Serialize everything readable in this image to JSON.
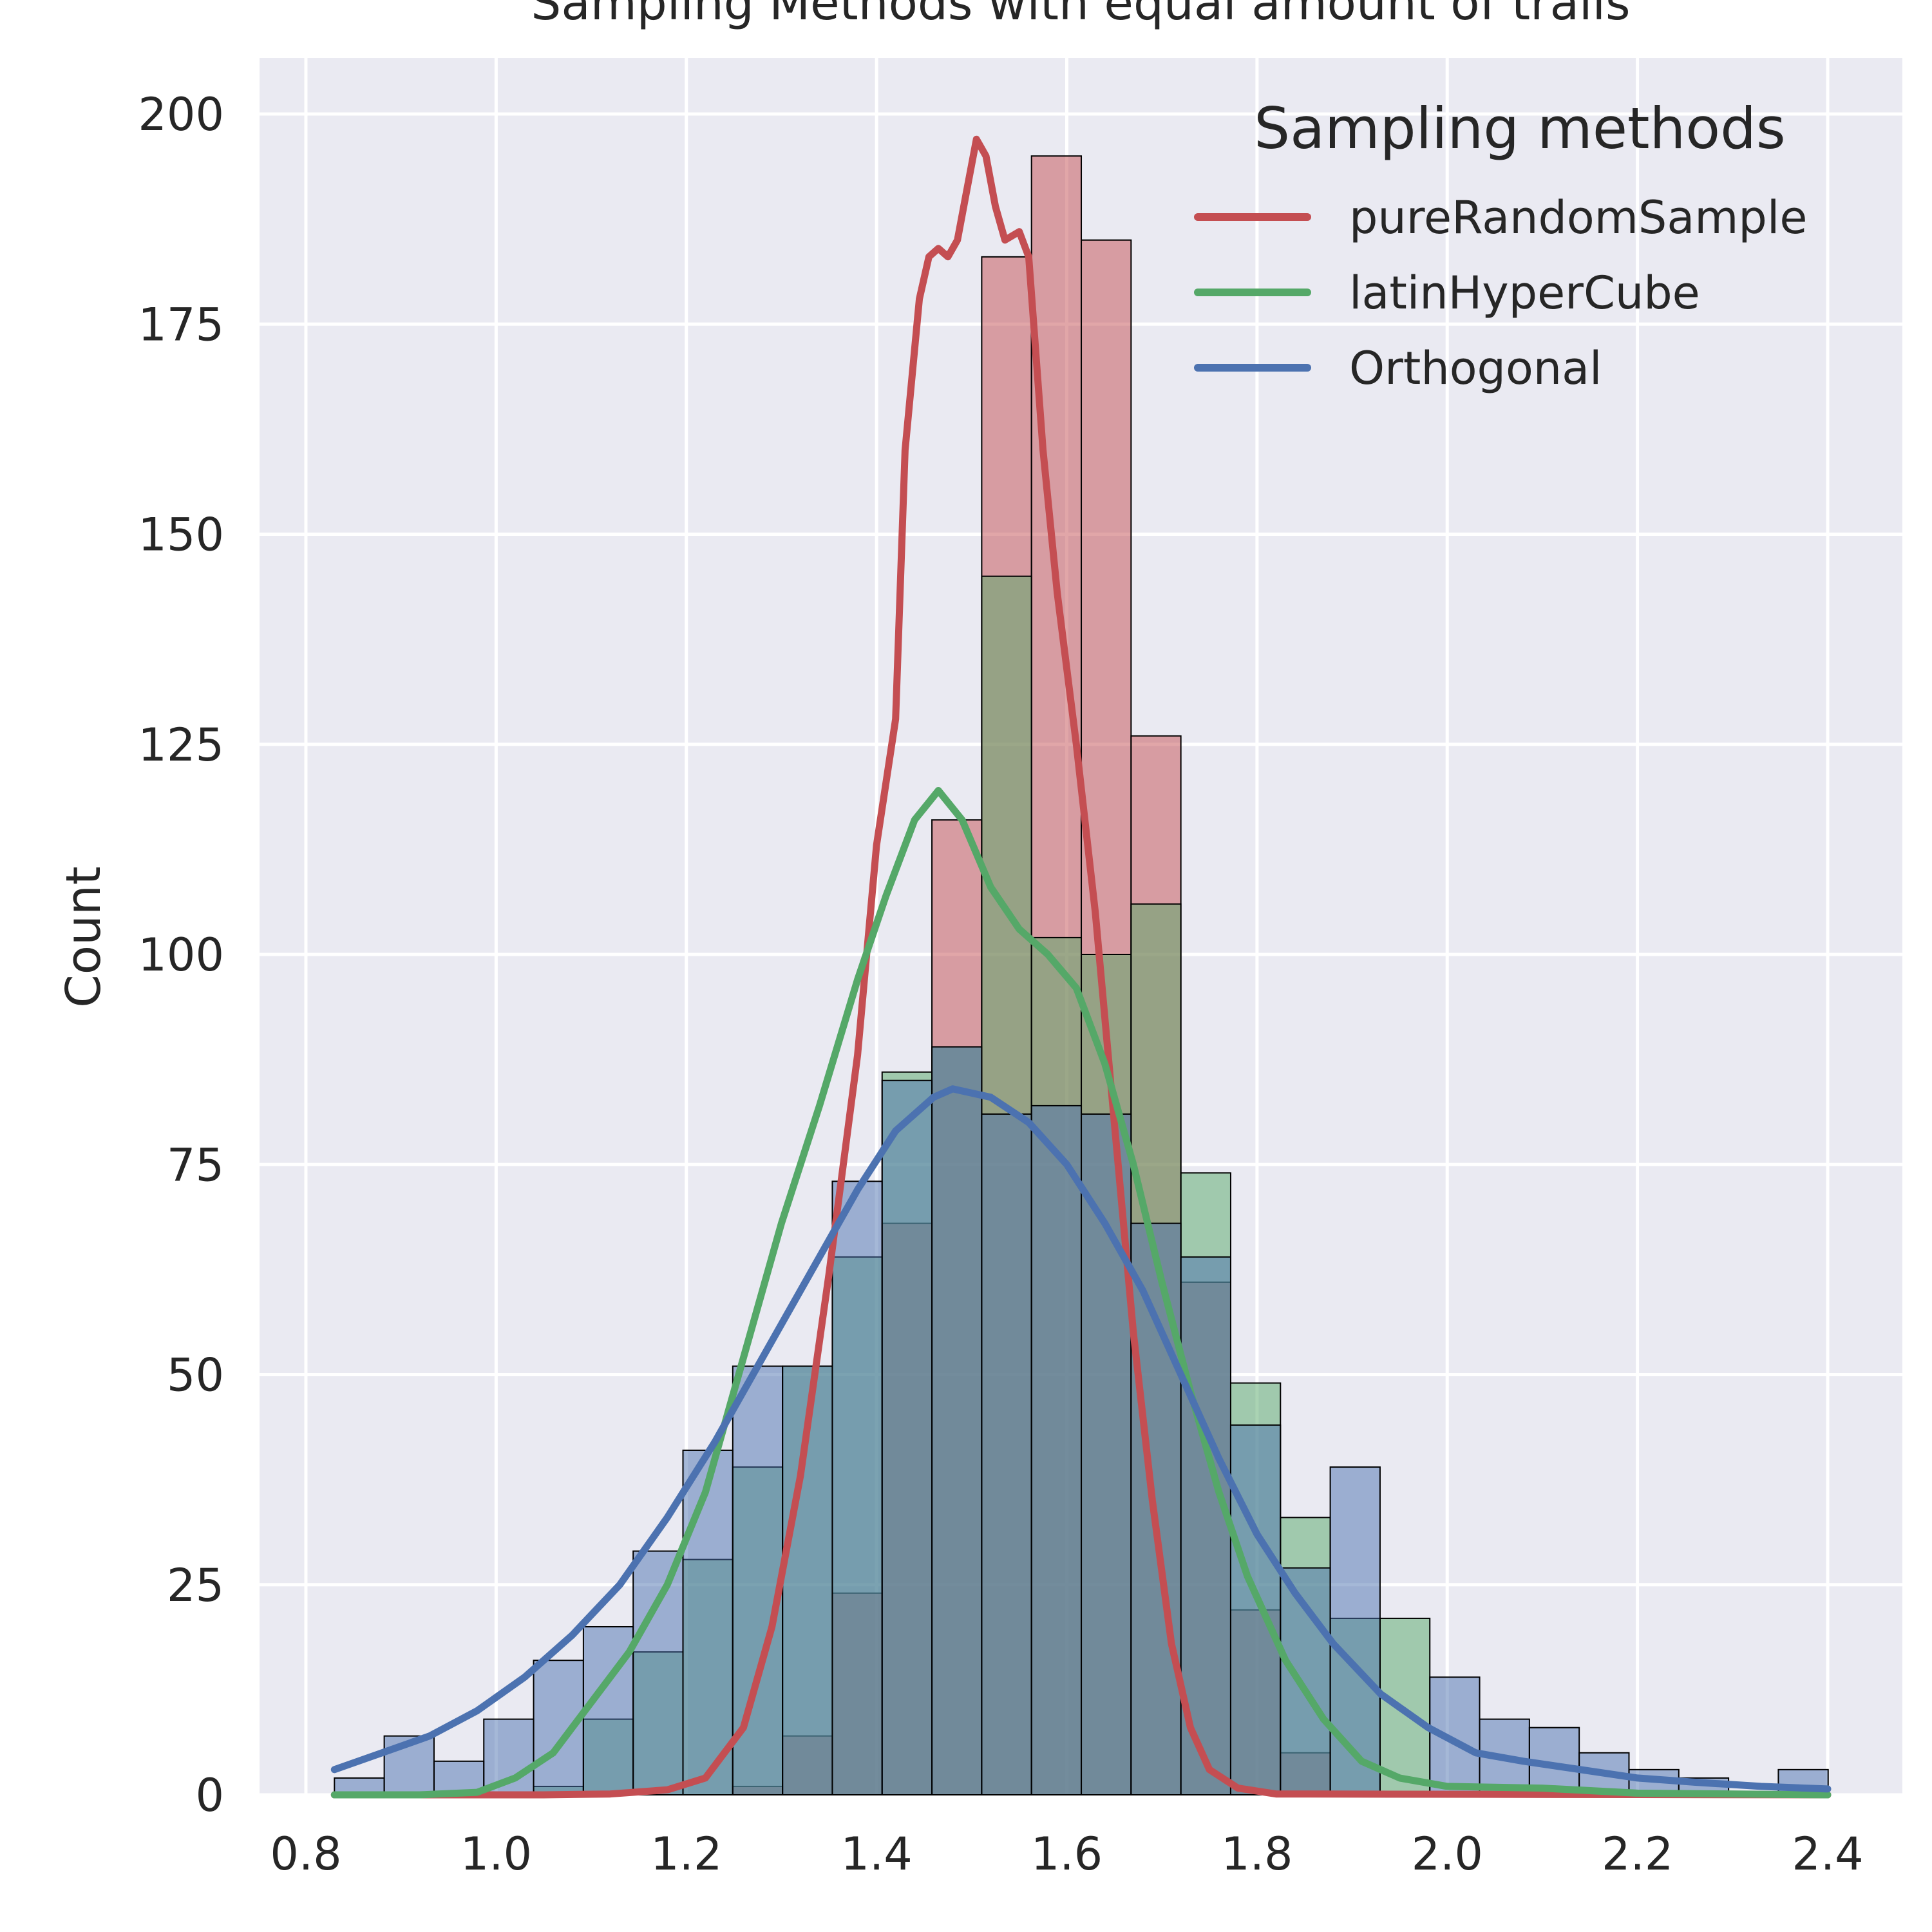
{
  "chart_data": {
    "type": "histogram",
    "title": "Sampling Methods with equal amount of trails",
    "xlabel": "",
    "ylabel": "Count",
    "xlim": [
      0.79,
      2.465
    ],
    "ylim": [
      0,
      207
    ],
    "xticks": [
      0.8,
      1.0,
      1.2,
      1.4,
      1.6,
      1.8,
      2.0,
      2.2,
      2.4
    ],
    "xtick_labels": [
      "0.8",
      "1.0",
      "1.2",
      "1.4",
      "1.6",
      "1.8",
      "2.0",
      "2.2",
      "2.4"
    ],
    "yticks": [
      0,
      25,
      50,
      75,
      100,
      125,
      150,
      175,
      200
    ],
    "ytick_labels": [
      "0",
      "25",
      "50",
      "75",
      "100",
      "125",
      "150",
      "175",
      "200"
    ],
    "grid": true,
    "legend": {
      "title": "Sampling methods",
      "placement": "top-right"
    },
    "bins": {
      "start": 0.83,
      "width": 0.05235,
      "count": 30
    },
    "series": [
      {
        "name": "pureRandomSample",
        "color": "#c44e52",
        "counts": [
          0,
          0,
          0,
          0,
          0,
          0,
          0,
          0,
          1,
          7,
          24,
          68,
          116,
          183,
          195,
          185,
          126,
          61,
          22,
          5,
          0,
          0,
          0,
          0,
          0,
          0,
          0,
          0,
          0,
          0
        ],
        "kde": [
          [
            0.83,
            0
          ],
          [
            1.05,
            0
          ],
          [
            1.12,
            0.1
          ],
          [
            1.18,
            0.6
          ],
          [
            1.22,
            2
          ],
          [
            1.26,
            8
          ],
          [
            1.29,
            20
          ],
          [
            1.32,
            38
          ],
          [
            1.35,
            62
          ],
          [
            1.38,
            88
          ],
          [
            1.4,
            113
          ],
          [
            1.42,
            128
          ],
          [
            1.43,
            160
          ],
          [
            1.445,
            178
          ],
          [
            1.455,
            183
          ],
          [
            1.465,
            184
          ],
          [
            1.475,
            183
          ],
          [
            1.485,
            185
          ],
          [
            1.495,
            191
          ],
          [
            1.505,
            197
          ],
          [
            1.515,
            195
          ],
          [
            1.525,
            189
          ],
          [
            1.535,
            185
          ],
          [
            1.55,
            186
          ],
          [
            1.56,
            183
          ],
          [
            1.575,
            160
          ],
          [
            1.59,
            143
          ],
          [
            1.61,
            125
          ],
          [
            1.63,
            105
          ],
          [
            1.65,
            80
          ],
          [
            1.67,
            55
          ],
          [
            1.69,
            35
          ],
          [
            1.71,
            18
          ],
          [
            1.73,
            8
          ],
          [
            1.75,
            3
          ],
          [
            1.78,
            0.8
          ],
          [
            1.82,
            0.1
          ],
          [
            2.4,
            0
          ]
        ]
      },
      {
        "name": "latinHyperCube",
        "color": "#55a868",
        "counts": [
          0,
          0,
          0,
          0,
          1,
          9,
          17,
          28,
          39,
          51,
          64,
          86,
          89,
          145,
          102,
          100,
          106,
          74,
          49,
          33,
          21,
          21,
          0,
          0,
          0,
          0,
          0,
          0,
          0,
          0
        ],
        "kde": [
          [
            0.83,
            0
          ],
          [
            0.92,
            0
          ],
          [
            0.98,
            0.3
          ],
          [
            1.02,
            2
          ],
          [
            1.06,
            5
          ],
          [
            1.1,
            11
          ],
          [
            1.14,
            17
          ],
          [
            1.18,
            25
          ],
          [
            1.22,
            36
          ],
          [
            1.26,
            52
          ],
          [
            1.3,
            68
          ],
          [
            1.34,
            82
          ],
          [
            1.38,
            97
          ],
          [
            1.41,
            107
          ],
          [
            1.44,
            116
          ],
          [
            1.465,
            119.5
          ],
          [
            1.49,
            116
          ],
          [
            1.52,
            108
          ],
          [
            1.55,
            103
          ],
          [
            1.58,
            100
          ],
          [
            1.61,
            96
          ],
          [
            1.64,
            87
          ],
          [
            1.67,
            75
          ],
          [
            1.7,
            61
          ],
          [
            1.73,
            48
          ],
          [
            1.76,
            36
          ],
          [
            1.79,
            26
          ],
          [
            1.83,
            16
          ],
          [
            1.87,
            9
          ],
          [
            1.91,
            4
          ],
          [
            1.95,
            2
          ],
          [
            2.0,
            1
          ],
          [
            2.1,
            0.8
          ],
          [
            2.2,
            0.2
          ],
          [
            2.4,
            0
          ]
        ]
      },
      {
        "name": "Orthogonal",
        "color": "#4c72b0",
        "counts": [
          2,
          7,
          4,
          9,
          16,
          20,
          29,
          41,
          51,
          51,
          73,
          85,
          89,
          81,
          82,
          81,
          68,
          64,
          44,
          27,
          39,
          0,
          14,
          9,
          8,
          5,
          3,
          2,
          0,
          3
        ],
        "kde": [
          [
            0.83,
            3
          ],
          [
            0.88,
            5
          ],
          [
            0.93,
            7
          ],
          [
            0.98,
            10
          ],
          [
            1.03,
            14
          ],
          [
            1.08,
            19
          ],
          [
            1.13,
            25
          ],
          [
            1.18,
            33
          ],
          [
            1.23,
            42
          ],
          [
            1.28,
            52
          ],
          [
            1.33,
            62
          ],
          [
            1.38,
            72
          ],
          [
            1.42,
            79
          ],
          [
            1.46,
            83
          ],
          [
            1.48,
            84
          ],
          [
            1.52,
            83
          ],
          [
            1.56,
            80
          ],
          [
            1.6,
            75
          ],
          [
            1.64,
            68
          ],
          [
            1.68,
            60
          ],
          [
            1.72,
            50
          ],
          [
            1.76,
            40
          ],
          [
            1.8,
            31
          ],
          [
            1.84,
            24
          ],
          [
            1.88,
            18
          ],
          [
            1.93,
            12
          ],
          [
            1.98,
            8
          ],
          [
            2.03,
            5
          ],
          [
            2.08,
            4
          ],
          [
            2.14,
            3
          ],
          [
            2.2,
            2
          ],
          [
            2.26,
            1.5
          ],
          [
            2.33,
            1
          ],
          [
            2.4,
            0.7
          ]
        ]
      }
    ]
  }
}
